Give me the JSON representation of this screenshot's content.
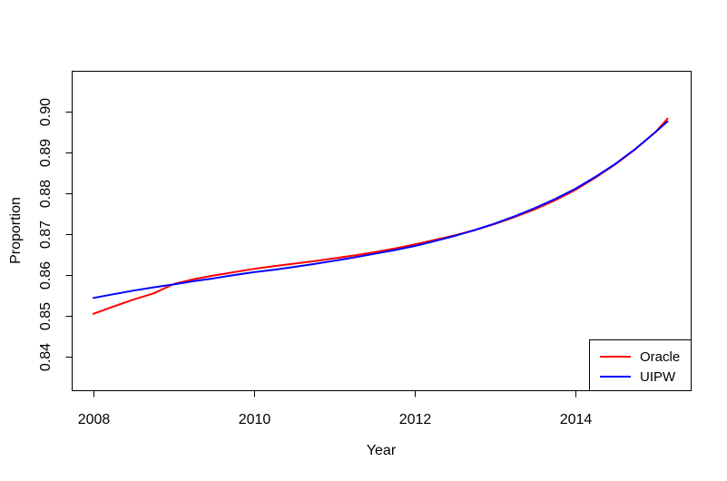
{
  "page": {
    "background_color": "#ffffff",
    "axis_color": "#000000"
  },
  "chart_data": {
    "type": "line",
    "title": "",
    "xlabel": "Year",
    "ylabel": "Proportion",
    "xlim": [
      2007.73,
      2015.45
    ],
    "ylim": [
      0.8318,
      0.91
    ],
    "grid": false,
    "x_ticks": [
      2008,
      2010,
      2012,
      2014
    ],
    "x_tick_labels": [
      "2008",
      "2010",
      "2012",
      "2014"
    ],
    "y_ticks": [
      0.84,
      0.85,
      0.86,
      0.87,
      0.88,
      0.89,
      0.9
    ],
    "y_tick_labels": [
      "0.84",
      "0.85",
      "0.86",
      "0.87",
      "0.88",
      "0.89",
      "0.90"
    ],
    "x": [
      2008,
      2008.25,
      2008.5,
      2008.75,
      2009,
      2009.25,
      2009.5,
      2009.75,
      2010,
      2010.25,
      2010.5,
      2010.75,
      2011,
      2011.25,
      2011.5,
      2011.75,
      2012,
      2012.25,
      2012.5,
      2012.75,
      2013,
      2013.25,
      2013.5,
      2013.75,
      2014,
      2014.25,
      2014.5,
      2014.75,
      2015,
      2015.15
    ],
    "series": [
      {
        "name": "Oracle",
        "color": "#ff0000",
        "values": [
          0.8505,
          0.8523,
          0.854,
          0.8555,
          0.8578,
          0.859,
          0.8599,
          0.8607,
          0.8615,
          0.8622,
          0.8628,
          0.8634,
          0.8641,
          0.8648,
          0.8656,
          0.8665,
          0.8675,
          0.8686,
          0.8697,
          0.871,
          0.8725,
          0.8742,
          0.8761,
          0.8783,
          0.8808,
          0.8838,
          0.8871,
          0.8908,
          0.895,
          0.8983
        ]
      },
      {
        "name": "UIPW",
        "color": "#0000ff",
        "values": [
          0.8544,
          0.8553,
          0.8562,
          0.857,
          0.8577,
          0.8585,
          0.8592,
          0.86,
          0.8607,
          0.8613,
          0.862,
          0.8627,
          0.8635,
          0.8643,
          0.8652,
          0.8661,
          0.8671,
          0.8683,
          0.8696,
          0.871,
          0.8726,
          0.8744,
          0.8764,
          0.8786,
          0.8811,
          0.884,
          0.8872,
          0.8909,
          0.895,
          0.8976
        ]
      }
    ],
    "legend": {
      "position": "bottomright",
      "entries": [
        "Oracle",
        "UIPW"
      ]
    }
  }
}
